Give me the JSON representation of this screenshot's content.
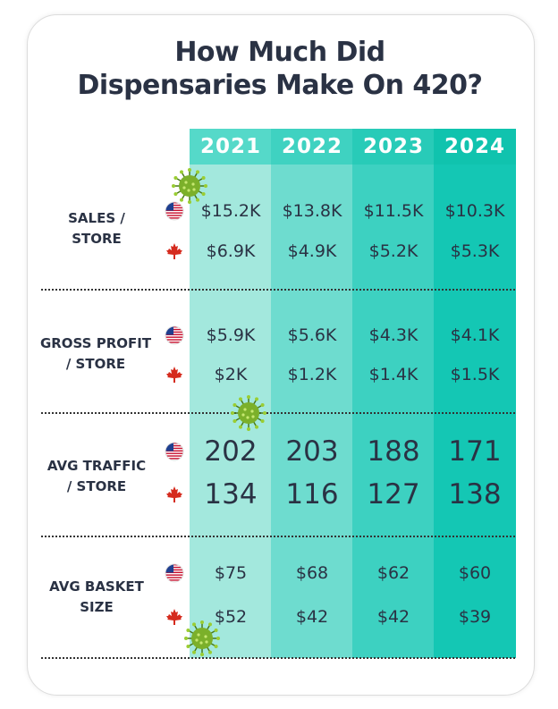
{
  "title_lines": [
    "How Much Did",
    "Dispensaries Make On 420?"
  ],
  "colors": {
    "title": "#2a3244",
    "col_2021": "#a3e8dd",
    "col_2022": "#6edccf",
    "col_2023": "#3dd1c1",
    "col_2024": "#14c7b4",
    "header_2021": "#55d9c9",
    "header_2022": "#3fd2c1",
    "header_2023": "#28cbb8",
    "header_2024": "#10c3ae"
  },
  "chart_data": {
    "type": "table",
    "columns": [
      "2021",
      "2022",
      "2023",
      "2024"
    ],
    "row_groups": [
      {
        "label_lines": [
          "SALES /",
          "STORE"
        ],
        "rows": [
          {
            "country": "US",
            "icon": "us-flag-icon",
            "values": [
              "$15.2K",
              "$13.8K",
              "$11.5K",
              "$10.3K"
            ]
          },
          {
            "country": "Canada",
            "icon": "maple-leaf-icon",
            "values": [
              "$6.9K",
              "$4.9K",
              "$5.2K",
              "$5.3K"
            ]
          }
        ]
      },
      {
        "label_lines": [
          "GROSS PROFIT",
          "/ STORE"
        ],
        "rows": [
          {
            "country": "US",
            "icon": "us-flag-icon",
            "values": [
              "$5.9K",
              "$5.6K",
              "$4.3K",
              "$4.1K"
            ]
          },
          {
            "country": "Canada",
            "icon": "maple-leaf-icon",
            "values": [
              "$2K",
              "$1.2K",
              "$1.4K",
              "$1.5K"
            ]
          }
        ]
      },
      {
        "label_lines": [
          "AVG TRAFFIC",
          "/ STORE"
        ],
        "rows": [
          {
            "country": "US",
            "icon": "us-flag-icon",
            "values": [
              "202",
              "203",
              "188",
              "171"
            ]
          },
          {
            "country": "Canada",
            "icon": "maple-leaf-icon",
            "values": [
              "134",
              "116",
              "127",
              "138"
            ]
          }
        ]
      },
      {
        "label_lines": [
          "AVG BASKET",
          "SIZE"
        ],
        "rows": [
          {
            "country": "US",
            "icon": "us-flag-icon",
            "values": [
              "$75",
              "$68",
              "$62",
              "$60"
            ]
          },
          {
            "country": "Canada",
            "icon": "maple-leaf-icon",
            "values": [
              "$52",
              "$42",
              "$42",
              "$39"
            ]
          }
        ]
      }
    ]
  },
  "decorations": [
    "virus-icon",
    "virus-icon",
    "virus-icon"
  ]
}
